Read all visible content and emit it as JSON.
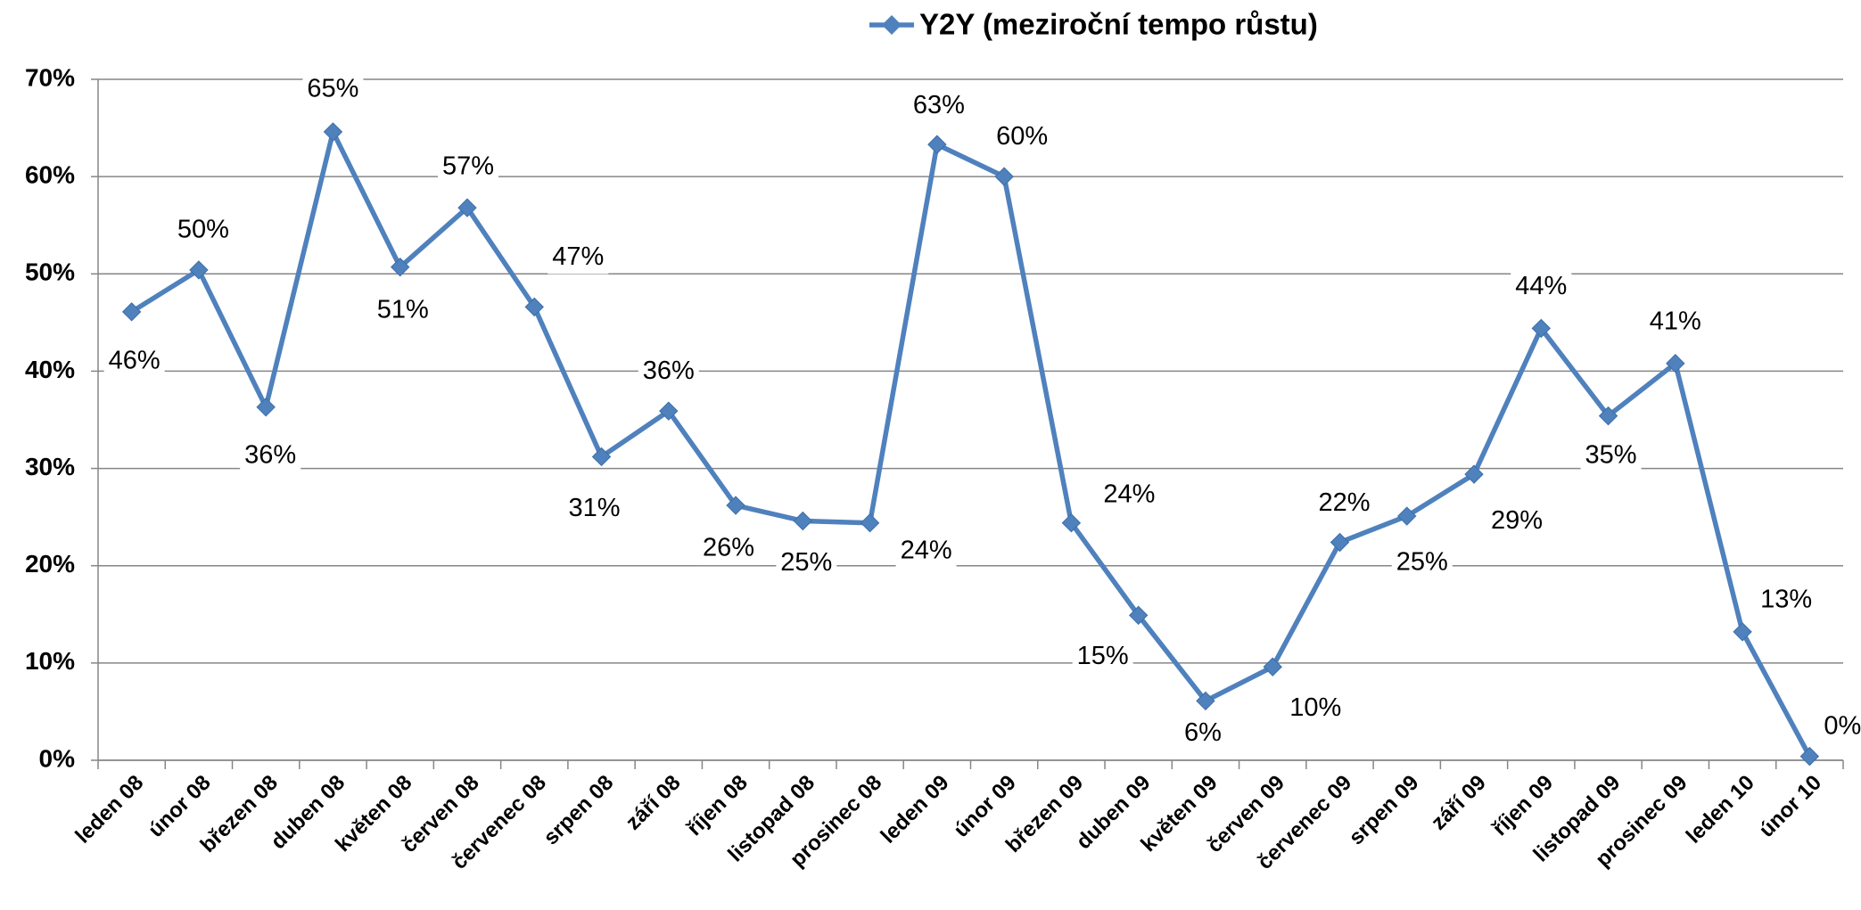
{
  "chart_data": {
    "type": "line",
    "categories": [
      "leden 08",
      "únor 08",
      "březen 08",
      "duben 08",
      "květen 08",
      "červen 08",
      "červenec 08",
      "srpen 08",
      "září 08",
      "říjen 08",
      "listopad 08",
      "prosinec 08",
      "leden 09",
      "únor 09",
      "březen 09",
      "duben 09",
      "květen 09",
      "červen 09",
      "červenec 09",
      "srpen 09",
      "září 09",
      "říjen 09",
      "listopad 09",
      "prosinec 09",
      "leden 10",
      "únor 10"
    ],
    "series": [
      {
        "name": "Y2Y (meziroční tempo růstu)",
        "color": "#4f81bd",
        "values": [
          46.1,
          50.4,
          36.3,
          64.6,
          50.7,
          56.8,
          46.6,
          31.2,
          35.9,
          26.2,
          24.6,
          24.4,
          63.3,
          60.0,
          24.4,
          14.9,
          6.1,
          9.6,
          22.4,
          25.1,
          29.4,
          44.4,
          35.4,
          40.8,
          13.2,
          0.4
        ],
        "value_labels": [
          "46%",
          "50%",
          "36%",
          "65%",
          "51%",
          "57%",
          "47%",
          "31%",
          "36%",
          "26%",
          "25%",
          "24%",
          "63%",
          "60%",
          "24%",
          "15%",
          "6%",
          "10%",
          "22%",
          "25%",
          "29%",
          "44%",
          "35%",
          "41%",
          "13%",
          "0%"
        ]
      }
    ],
    "ylim": [
      0,
      70
    ],
    "yticks": [
      {
        "value": 0,
        "label": "0%"
      },
      {
        "value": 10,
        "label": "10%"
      },
      {
        "value": 20,
        "label": "20%"
      },
      {
        "value": 30,
        "label": "30%"
      },
      {
        "value": 40,
        "label": "40%"
      },
      {
        "value": 50,
        "label": "50%"
      },
      {
        "value": 60,
        "label": "60%"
      },
      {
        "value": 70,
        "label": "70%"
      }
    ],
    "grid": true,
    "legend": "top"
  }
}
